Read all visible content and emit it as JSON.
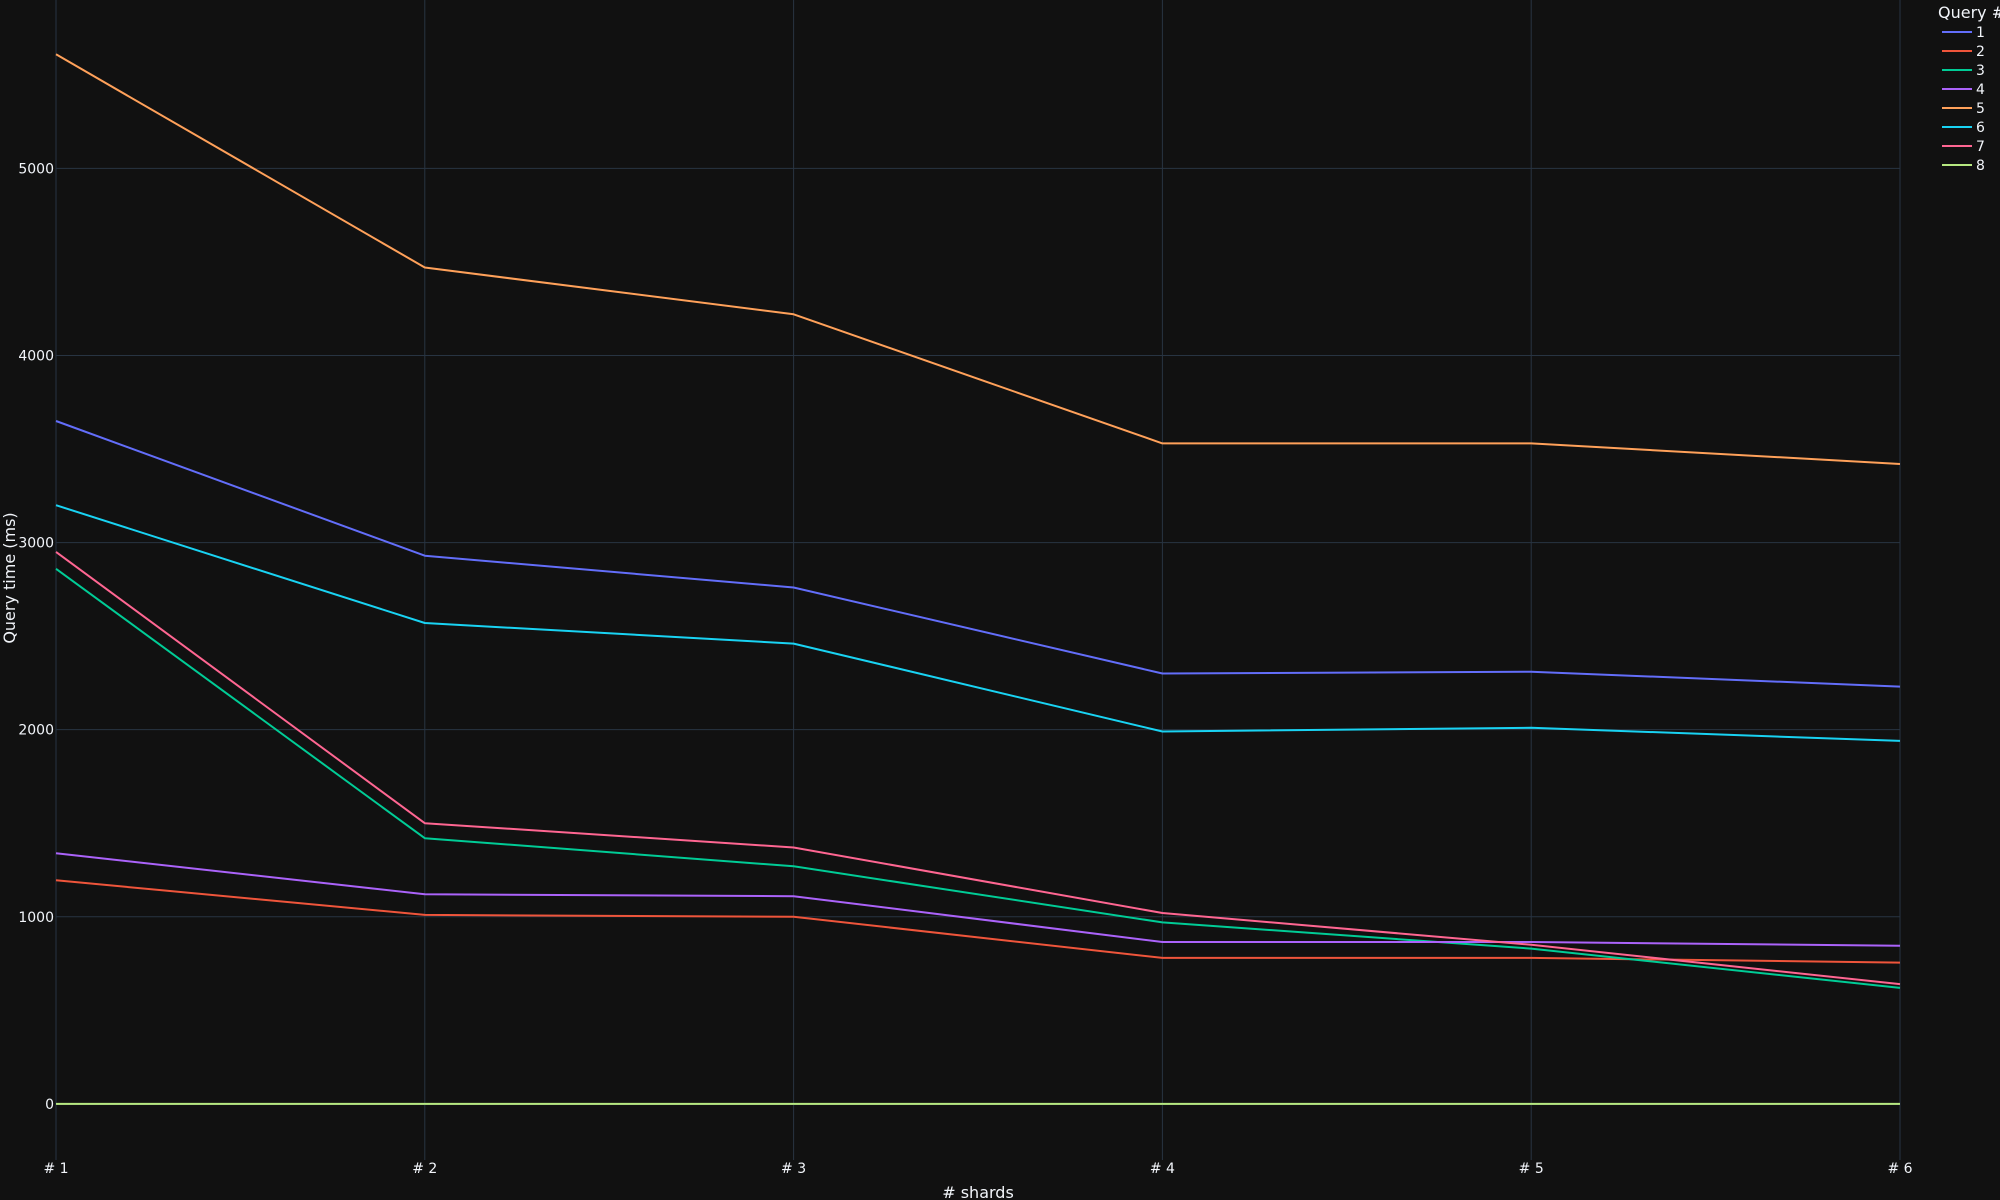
{
  "chart_data": {
    "type": "line",
    "title": "",
    "xlabel": "# shards",
    "ylabel": "Query time (ms)",
    "categories": [
      "# 1",
      "# 2",
      "# 3",
      "# 4",
      "# 5",
      "# 6"
    ],
    "ylim": [
      -300,
      5900
    ],
    "yticks": [
      0,
      1000,
      2000,
      3000,
      4000,
      5000
    ],
    "grid": true,
    "legend": {
      "title": "Query #",
      "placement": "top-right"
    },
    "series": [
      {
        "name": "1",
        "color": "#636efa",
        "values": [
          3650,
          2930,
          2760,
          2300,
          2310,
          2230
        ]
      },
      {
        "name": "2",
        "color": "#ef553b",
        "values": [
          1195,
          1010,
          1000,
          780,
          780,
          755
        ]
      },
      {
        "name": "3",
        "color": "#00cc96",
        "values": [
          2860,
          1420,
          1270,
          970,
          830,
          620
        ]
      },
      {
        "name": "4",
        "color": "#ab63fa",
        "values": [
          1340,
          1120,
          1110,
          865,
          865,
          845
        ]
      },
      {
        "name": "5",
        "color": "#ffa15a",
        "values": [
          5610,
          4470,
          4220,
          3530,
          3530,
          3420
        ]
      },
      {
        "name": "6",
        "color": "#19d3f3",
        "values": [
          3200,
          2570,
          2460,
          1990,
          2010,
          1940
        ]
      },
      {
        "name": "7",
        "color": "#ff6692",
        "values": [
          2950,
          1500,
          1370,
          1020,
          850,
          640
        ]
      },
      {
        "name": "8",
        "color": "#b6e880",
        "values": [
          0,
          0,
          0,
          0,
          0,
          0
        ]
      }
    ]
  },
  "colors": {
    "background": "#111111",
    "grid": "#283442",
    "zeroline": "#ffffff",
    "text": "#f2f5fa"
  }
}
